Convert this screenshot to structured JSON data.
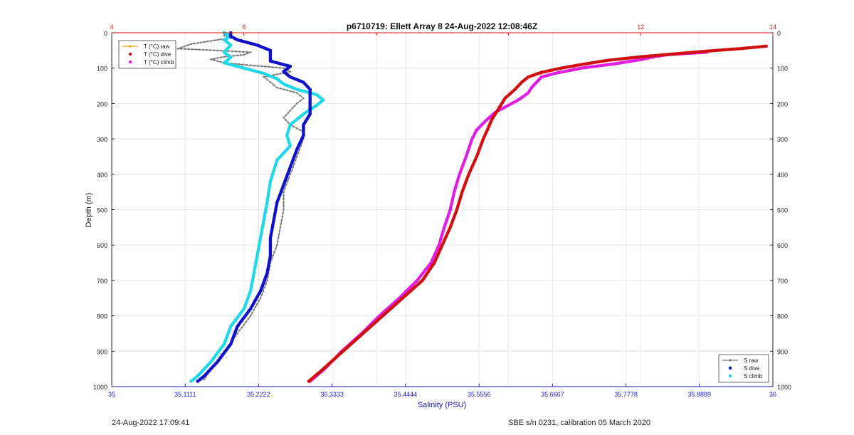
{
  "chart_data": {
    "type": "line",
    "title": "p6710719: Ellett Array 8 24-Aug-2022 12:08:46Z",
    "ylabel": "Depth (m)",
    "xlabel_bottom": "Salinity (PSU)",
    "y_axis": {
      "range": [
        0,
        1000
      ],
      "reversed": true,
      "ticks": [
        "0",
        "100",
        "200",
        "300",
        "400",
        "500",
        "600",
        "700",
        "800",
        "900",
        "1000"
      ]
    },
    "x_top": {
      "quantity": "Temperature",
      "range": [
        4,
        14
      ],
      "ticks": [
        4,
        6,
        8,
        10,
        12,
        14
      ],
      "tick_labels": [
        "4",
        "6",
        "",
        "",
        "12",
        "14"
      ],
      "color": "#e01010"
    },
    "x_bottom": {
      "quantity": "Salinity",
      "range": [
        35,
        36
      ],
      "ticks": [
        35,
        35.1111,
        35.2222,
        35.3333,
        35.4444,
        35.5556,
        35.6667,
        35.7778,
        35.8889,
        36
      ],
      "tick_labels": [
        "35",
        "35.1111",
        "35.2222",
        "35.3333",
        "35.4444",
        "35.5556",
        "35.6667",
        "35.7778",
        "35.8889",
        "36"
      ],
      "color": "#1a1acc"
    },
    "grid": true,
    "legends": [
      {
        "position": "top-left",
        "entries": [
          "T (°C) raw",
          "T (°C) dive",
          "T (°C) climb"
        ]
      },
      {
        "position": "bottom-right",
        "entries": [
          "S raw",
          "S dive",
          "S climb"
        ]
      }
    ],
    "series": [
      {
        "name": "T (°C) raw",
        "axis": "top",
        "color": "#e8a200",
        "style": "line",
        "points": [
          [
            13.9,
            38
          ],
          [
            13.6,
            43
          ],
          [
            13.3,
            48
          ],
          [
            12.9,
            55
          ],
          [
            12.3,
            62
          ],
          [
            11.8,
            72
          ],
          [
            11.3,
            85
          ],
          [
            11.0,
            95
          ],
          [
            10.7,
            105
          ],
          [
            10.5,
            115
          ]
        ]
      },
      {
        "name": "T (°C) dive",
        "axis": "top",
        "color": "#d01010",
        "style": "dots",
        "points": [
          [
            13.9,
            38
          ],
          [
            13.5,
            45
          ],
          [
            13.0,
            52
          ],
          [
            12.5,
            60
          ],
          [
            12.0,
            68
          ],
          [
            11.5,
            78
          ],
          [
            11.1,
            90
          ],
          [
            10.8,
            100
          ],
          [
            10.5,
            112
          ],
          [
            10.3,
            125
          ],
          [
            10.2,
            140
          ],
          [
            10.1,
            160
          ],
          [
            9.95,
            185
          ],
          [
            9.85,
            215
          ],
          [
            9.75,
            245
          ],
          [
            9.68,
            275
          ],
          [
            9.62,
            300
          ],
          [
            9.52,
            350
          ],
          [
            9.4,
            400
          ],
          [
            9.3,
            450
          ],
          [
            9.22,
            500
          ],
          [
            9.12,
            550
          ],
          [
            9.0,
            600
          ],
          [
            8.88,
            650
          ],
          [
            8.7,
            700
          ],
          [
            8.4,
            750
          ],
          [
            8.1,
            800
          ],
          [
            7.8,
            850
          ],
          [
            7.5,
            900
          ],
          [
            7.2,
            950
          ],
          [
            6.98,
            985
          ]
        ]
      },
      {
        "name": "T (°C) climb",
        "axis": "top",
        "color": "#e020e0",
        "style": "dots",
        "points": [
          [
            13.0,
            55
          ],
          [
            12.4,
            62
          ],
          [
            12.2,
            68
          ],
          [
            12.0,
            76
          ],
          [
            11.6,
            88
          ],
          [
            11.1,
            100
          ],
          [
            10.7,
            115
          ],
          [
            10.5,
            125
          ],
          [
            10.45,
            135
          ],
          [
            10.4,
            145
          ],
          [
            10.35,
            155
          ],
          [
            10.3,
            170
          ],
          [
            10.15,
            190
          ],
          [
            10.0,
            205
          ],
          [
            9.8,
            225
          ],
          [
            9.65,
            250
          ],
          [
            9.52,
            275
          ],
          [
            9.45,
            300
          ],
          [
            9.36,
            350
          ],
          [
            9.26,
            400
          ],
          [
            9.18,
            450
          ],
          [
            9.12,
            500
          ],
          [
            9.03,
            550
          ],
          [
            8.95,
            600
          ],
          [
            8.83,
            650
          ],
          [
            8.62,
            700
          ],
          [
            8.35,
            750
          ],
          [
            8.05,
            800
          ],
          [
            7.78,
            850
          ],
          [
            7.48,
            900
          ],
          [
            7.22,
            950
          ],
          [
            7.0,
            985
          ]
        ]
      },
      {
        "name": "S raw",
        "axis": "bottom",
        "color": "#7a7a7a",
        "style": "line-markers",
        "points": [
          [
            35.17,
            0
          ],
          [
            35.17,
            8
          ],
          [
            35.18,
            15
          ],
          [
            35.16,
            20
          ],
          [
            35.12,
            32
          ],
          [
            35.1,
            45
          ],
          [
            35.16,
            50
          ],
          [
            35.21,
            55
          ],
          [
            35.2,
            62
          ],
          [
            35.17,
            68
          ],
          [
            35.15,
            75
          ],
          [
            35.17,
            85
          ],
          [
            35.21,
            92
          ],
          [
            35.26,
            100
          ],
          [
            35.27,
            110
          ],
          [
            35.23,
            125
          ],
          [
            35.24,
            140
          ],
          [
            35.25,
            155
          ],
          [
            35.28,
            170
          ],
          [
            35.29,
            185
          ],
          [
            35.28,
            200
          ],
          [
            35.27,
            220
          ],
          [
            35.26,
            240
          ],
          [
            35.27,
            260
          ],
          [
            35.29,
            280
          ],
          [
            35.29,
            300
          ],
          [
            35.28,
            350
          ],
          [
            35.27,
            400
          ],
          [
            35.26,
            450
          ],
          [
            35.26,
            500
          ],
          [
            35.255,
            550
          ],
          [
            35.25,
            600
          ],
          [
            35.24,
            650
          ],
          [
            35.235,
            700
          ],
          [
            35.225,
            750
          ],
          [
            35.21,
            800
          ],
          [
            35.19,
            850
          ],
          [
            35.17,
            900
          ],
          [
            35.15,
            950
          ],
          [
            35.14,
            980
          ]
        ]
      },
      {
        "name": "S dive",
        "axis": "bottom",
        "color": "#1010c8",
        "style": "dots",
        "points": [
          [
            35.18,
            0
          ],
          [
            35.18,
            10
          ],
          [
            35.19,
            20
          ],
          [
            35.22,
            35
          ],
          [
            35.24,
            50
          ],
          [
            35.24,
            65
          ],
          [
            35.24,
            80
          ],
          [
            35.27,
            95
          ],
          [
            35.26,
            110
          ],
          [
            35.27,
            125
          ],
          [
            35.29,
            140
          ],
          [
            35.3,
            160
          ],
          [
            35.3,
            180
          ],
          [
            35.3,
            200
          ],
          [
            35.3,
            230
          ],
          [
            35.29,
            260
          ],
          [
            35.29,
            290
          ],
          [
            35.28,
            330
          ],
          [
            35.27,
            380
          ],
          [
            35.26,
            430
          ],
          [
            35.25,
            480
          ],
          [
            35.245,
            530
          ],
          [
            35.24,
            580
          ],
          [
            35.24,
            630
          ],
          [
            35.235,
            680
          ],
          [
            35.225,
            730
          ],
          [
            35.21,
            780
          ],
          [
            35.19,
            830
          ],
          [
            35.18,
            880
          ],
          [
            35.16,
            930
          ],
          [
            35.14,
            970
          ],
          [
            35.13,
            985
          ]
        ]
      },
      {
        "name": "S climb",
        "axis": "bottom",
        "color": "#20d8e8",
        "style": "dots",
        "points": [
          [
            35.17,
            0
          ],
          [
            35.18,
            10
          ],
          [
            35.17,
            20
          ],
          [
            35.18,
            35
          ],
          [
            35.17,
            55
          ],
          [
            35.18,
            70
          ],
          [
            35.17,
            85
          ],
          [
            35.2,
            100
          ],
          [
            35.23,
            115
          ],
          [
            35.25,
            130
          ],
          [
            35.26,
            145
          ],
          [
            35.28,
            160
          ],
          [
            35.31,
            175
          ],
          [
            35.32,
            190
          ],
          [
            35.31,
            205
          ],
          [
            35.29,
            230
          ],
          [
            35.27,
            260
          ],
          [
            35.265,
            290
          ],
          [
            35.27,
            320
          ],
          [
            35.25,
            360
          ],
          [
            35.24,
            420
          ],
          [
            35.235,
            480
          ],
          [
            35.23,
            530
          ],
          [
            35.225,
            580
          ],
          [
            35.22,
            630
          ],
          [
            35.215,
            680
          ],
          [
            35.21,
            730
          ],
          [
            35.2,
            780
          ],
          [
            35.18,
            830
          ],
          [
            35.17,
            880
          ],
          [
            35.15,
            930
          ],
          [
            35.13,
            970
          ],
          [
            35.12,
            985
          ]
        ]
      }
    ]
  },
  "footer": {
    "timestamp": "24-Aug-2022 17:09:41",
    "calibration": "SBE s/n 0231, calibration 05 March 2020"
  }
}
